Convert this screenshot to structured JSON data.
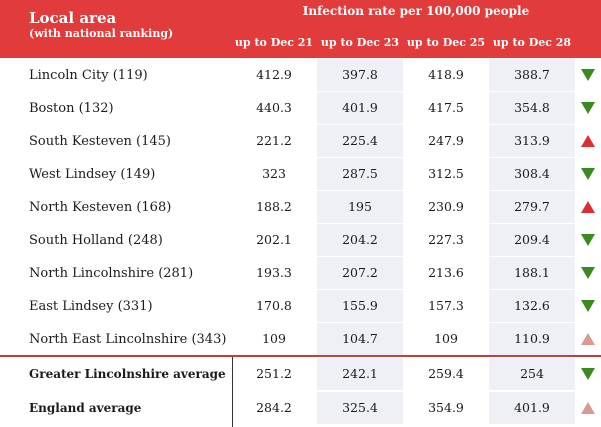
{
  "header": {
    "area_title": "Local area",
    "area_subtitle": "(with national ranking)",
    "metric_title": "Infection rate per 100,000 people",
    "columns": [
      "up to Dec 21",
      "up to Dec 23",
      "up to Dec 25",
      "up to Dec 28"
    ]
  },
  "colors": {
    "header_bg": "#e23b3b",
    "shade": "#eef0f6",
    "down": "#3a8a1f",
    "up": "#dc2e2e",
    "up_light": "#d99a8f"
  },
  "rows": [
    {
      "area": "Lincoln City (119)",
      "values": [
        "412.9",
        "397.8",
        "418.9",
        "388.7"
      ],
      "trend": "down"
    },
    {
      "area": "Boston (132)",
      "values": [
        "440.3",
        "401.9",
        "417.5",
        "354.8"
      ],
      "trend": "down"
    },
    {
      "area": "South Kesteven (145)",
      "values": [
        "221.2",
        "225.4",
        "247.9",
        "313.9"
      ],
      "trend": "up"
    },
    {
      "area": "West Lindsey (149)",
      "values": [
        "323",
        "287.5",
        "312.5",
        "308.4"
      ],
      "trend": "down"
    },
    {
      "area": "North Kesteven (168)",
      "values": [
        "188.2",
        "195",
        "230.9",
        "279.7"
      ],
      "trend": "up"
    },
    {
      "area": "South Holland (248)",
      "values": [
        "202.1",
        "204.2",
        "227.3",
        "209.4"
      ],
      "trend": "down"
    },
    {
      "area": "North Lincolnshire (281)",
      "values": [
        "193.3",
        "207.2",
        "213.6",
        "188.1"
      ],
      "trend": "down"
    },
    {
      "area": "East Lindsey (331)",
      "values": [
        "170.8",
        "155.9",
        "157.3",
        "132.6"
      ],
      "trend": "down"
    },
    {
      "area": "North East Lincolnshire (343)",
      "values": [
        "109",
        "104.7",
        "109",
        "110.9"
      ],
      "trend": "up-light"
    }
  ],
  "summary_rows": [
    {
      "area": "Greater Lincolnshire average",
      "values": [
        "251.2",
        "242.1",
        "259.4",
        "254"
      ],
      "trend": "down"
    },
    {
      "area": "England average",
      "values": [
        "284.2",
        "325.4",
        "354.9",
        "401.9"
      ],
      "trend": "up-light"
    }
  ]
}
